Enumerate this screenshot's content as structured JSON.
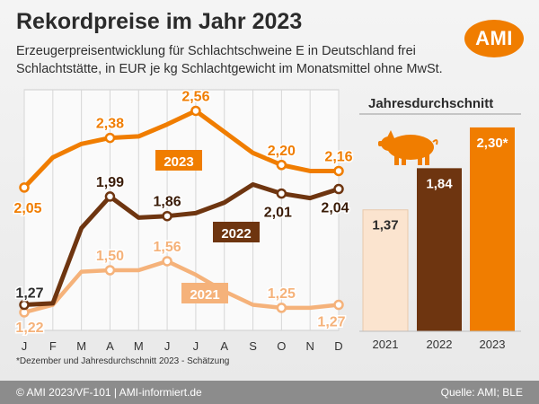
{
  "header": {
    "title": "Rekordpreise im Jahr 2023",
    "subtitle": "Erzeugerpreisentwicklung für Schlachtschweine E in Deutschland frei Schlachtstätte, in EUR je kg Schlachtgewicht im Monatsmittel ohne MwSt.",
    "logo_text": "AMI"
  },
  "footnote": "*Dezember und Jahresdurchschnitt 2023 - Schätzung",
  "footer": {
    "left": "© AMI 2023/VF-101 | AMI-informiert.de",
    "right": "Quelle: AMI; BLE"
  },
  "colors": {
    "y2023": "#f07d00",
    "y2022": "#6e3510",
    "y2021": "#f5b27a",
    "bar2021": "#fbe4cf",
    "footer": "#8c8c8c"
  },
  "chart_data": [
    {
      "type": "line",
      "categories": [
        "J",
        "F",
        "M",
        "A",
        "M",
        "J",
        "J",
        "A",
        "S",
        "O",
        "N",
        "D"
      ],
      "ylim": [
        1.1,
        2.7
      ],
      "grid": true,
      "series": [
        {
          "name": "2023",
          "values": [
            2.05,
            2.25,
            2.34,
            2.38,
            2.39,
            2.47,
            2.56,
            2.42,
            2.28,
            2.2,
            2.16,
            2.16
          ],
          "labels": [
            {
              "index": 0,
              "text": "2,05"
            },
            {
              "index": 3,
              "text": "2,38"
            },
            {
              "index": 6,
              "text": "2,56"
            },
            {
              "index": 9,
              "text": "2,20"
            },
            {
              "index": 11,
              "text": "2,16"
            }
          ]
        },
        {
          "name": "2022",
          "values": [
            1.27,
            1.28,
            1.78,
            1.99,
            1.85,
            1.86,
            1.88,
            1.95,
            2.07,
            2.01,
            1.98,
            2.04
          ],
          "labels": [
            {
              "index": 0,
              "text": "1,27"
            },
            {
              "index": 3,
              "text": "1,99"
            },
            {
              "index": 5,
              "text": "1,86"
            },
            {
              "index": 9,
              "text": "2,01"
            },
            {
              "index": 11,
              "text": "2,04"
            }
          ]
        },
        {
          "name": "2021",
          "values": [
            1.22,
            1.27,
            1.49,
            1.5,
            1.5,
            1.56,
            1.47,
            1.36,
            1.27,
            1.25,
            1.25,
            1.27
          ],
          "labels": [
            {
              "index": 0,
              "text": "1,22"
            },
            {
              "index": 3,
              "text": "1,50"
            },
            {
              "index": 5,
              "text": "1,56"
            },
            {
              "index": 9,
              "text": "1,25"
            },
            {
              "index": 11,
              "text": "1,27"
            }
          ]
        }
      ]
    },
    {
      "type": "bar",
      "title": "Jahresdurchschnitt",
      "categories": [
        "2021",
        "2022",
        "2023"
      ],
      "values": [
        1.37,
        1.84,
        2.3
      ],
      "value_labels": [
        "1,37",
        "1,84",
        "2,30*"
      ],
      "ylim": [
        0,
        2.35
      ],
      "icon": "pig-icon"
    }
  ]
}
